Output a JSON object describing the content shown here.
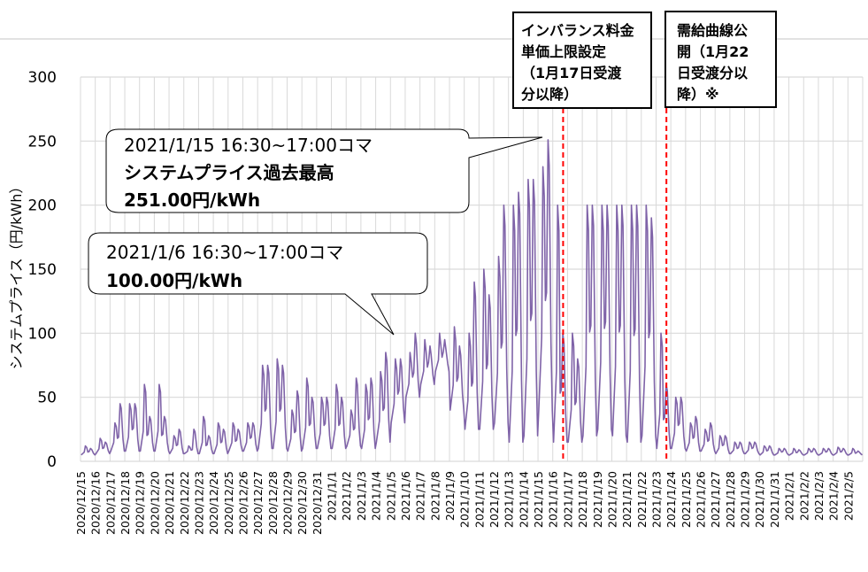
{
  "chart_data": {
    "type": "line",
    "title": "",
    "ylabel": "システムプライス（円/kWh）",
    "xlabel": "",
    "ylim": [
      0,
      300
    ],
    "yticks": [
      0,
      50,
      100,
      150,
      200,
      250,
      300
    ],
    "grid": true,
    "line_color": "#7f63a8",
    "categories": [
      "2020/12/15",
      "2020/12/16",
      "2020/12/17",
      "2020/12/18",
      "2020/12/19",
      "2020/12/20",
      "2020/12/21",
      "2020/12/22",
      "2020/12/23",
      "2020/12/24",
      "2020/12/25",
      "2020/12/26",
      "2020/12/27",
      "2020/12/28",
      "2020/12/29",
      "2020/12/30",
      "2020/12/31",
      "2021/1/1",
      "2021/1/2",
      "2021/1/3",
      "2021/1/4",
      "2021/1/5",
      "2021/1/6",
      "2021/1/7",
      "2021/1/8",
      "2021/1/9",
      "2021/1/10",
      "2021/1/11",
      "2021/1/12",
      "2021/1/13",
      "2021/1/14",
      "2021/1/15",
      "2021/1/16",
      "2021/1/17",
      "2021/1/18",
      "2021/1/19",
      "2021/1/20",
      "2021/1/21",
      "2021/1/22",
      "2021/1/23",
      "2021/1/24",
      "2021/1/25",
      "2021/1/26",
      "2021/1/27",
      "2021/1/28",
      "2021/1/29",
      "2021/1/30",
      "2021/1/31",
      "2021/2/1",
      "2021/2/2",
      "2021/2/3",
      "2021/2/4",
      "2021/2/5"
    ],
    "daily_morning_peak": [
      12,
      18,
      30,
      45,
      60,
      60,
      20,
      12,
      35,
      30,
      30,
      30,
      75,
      80,
      40,
      65,
      50,
      60,
      40,
      60,
      70,
      80,
      85,
      95,
      100,
      105,
      100,
      150,
      160,
      200,
      220,
      230,
      200,
      100,
      200,
      200,
      200,
      200,
      200,
      100,
      50,
      30,
      25,
      20,
      15,
      15,
      12,
      10,
      10,
      10,
      10,
      11,
      10
    ],
    "daily_evening_peak": [
      10,
      15,
      45,
      45,
      35,
      35,
      25,
      25,
      20,
      25,
      25,
      30,
      75,
      75,
      55,
      50,
      50,
      50,
      65,
      65,
      85,
      80,
      100,
      90,
      95,
      90,
      140,
      130,
      200,
      210,
      220,
      251,
      100,
      80,
      200,
      200,
      200,
      200,
      190,
      60,
      50,
      35,
      30,
      20,
      15,
      15,
      12,
      10,
      9,
      10,
      10,
      10,
      8
    ],
    "daily_low": [
      5,
      6,
      8,
      8,
      8,
      8,
      6,
      6,
      6,
      6,
      8,
      8,
      10,
      10,
      8,
      10,
      10,
      10,
      12,
      10,
      15,
      30,
      50,
      60,
      70,
      40,
      25,
      25,
      30,
      15,
      20,
      40,
      15,
      15,
      20,
      25,
      20,
      15,
      20,
      10,
      10,
      8,
      8,
      6,
      6,
      6,
      5,
      5,
      5,
      5,
      5,
      5,
      5
    ],
    "annotations": [
      {
        "type": "callout",
        "lines": [
          "2021/1/15  16:30~17:00コマ",
          "システムプライス過去最高",
          "251.00円/kWh"
        ],
        "date": "2021/1/15",
        "value": 251
      },
      {
        "type": "callout",
        "lines": [
          "2021/1/6 16:30~17:00コマ",
          "100.00円/kWh"
        ],
        "date": "2021/1/6",
        "value": 100
      },
      {
        "type": "vline",
        "date": "2021/1/17",
        "color": "#ff0000",
        "lines": [
          "インバランス料金",
          "単価上限設定",
          "（1月17日受渡",
          "分以降）"
        ]
      },
      {
        "type": "vline",
        "date": "2021/1/24",
        "color": "#ff0000",
        "lines": [
          "需給曲線公",
          "開（1月22",
          "日受渡分以",
          "降）※"
        ]
      }
    ]
  }
}
